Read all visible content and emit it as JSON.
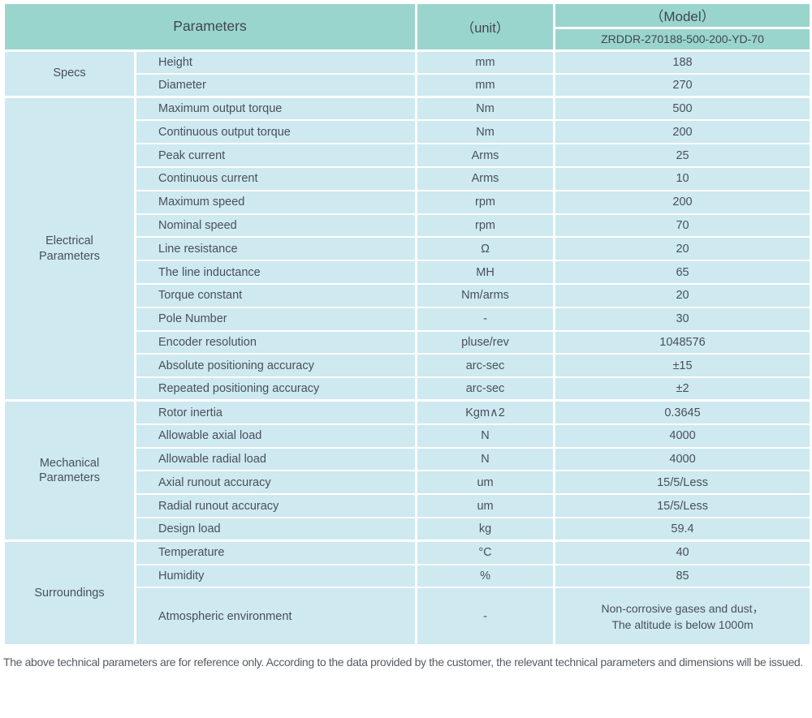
{
  "header": {
    "parameters_label": "Parameters",
    "unit_label": "（unit）",
    "model_label": "（Model）",
    "model_value": "ZRDDR-270188-500-200-YD-70"
  },
  "colors": {
    "header_bg": "#9ad5cd",
    "cell_bg": "#cee9f0",
    "grid_lines": "#ffffff",
    "text": "#49505a"
  },
  "sections": [
    {
      "group": "Specs",
      "rows": [
        {
          "name": "Height",
          "unit": "mm",
          "value": "188"
        },
        {
          "name": "Diameter",
          "unit": "mm",
          "value": "270"
        }
      ]
    },
    {
      "group": "Electrical\nParameters",
      "rows": [
        {
          "name": "Maximum output torque",
          "unit": "Nm",
          "value": "500"
        },
        {
          "name": "Continuous output torque",
          "unit": "Nm",
          "value": "200"
        },
        {
          "name": "Peak current",
          "unit": "Arms",
          "value": "25"
        },
        {
          "name": "Continuous current",
          "unit": "Arms",
          "value": "10"
        },
        {
          "name": "Maximum speed",
          "unit": "rpm",
          "value": "200"
        },
        {
          "name": "Nominal speed",
          "unit": "rpm",
          "value": "70"
        },
        {
          "name": "Line resistance",
          "unit": "Ω",
          "value": "20"
        },
        {
          "name": "The line inductance",
          "unit": "MH",
          "value": "65"
        },
        {
          "name": "Torque constant",
          "unit": "Nm/arms",
          "value": "20"
        },
        {
          "name": "Pole Number",
          "unit": "-",
          "value": "30"
        },
        {
          "name": "Encoder resolution",
          "unit": "pluse/rev",
          "value": "1048576"
        },
        {
          "name": "Absolute positioning accuracy",
          "unit": "arc-sec",
          "value": "±15"
        },
        {
          "name": "Repeated positioning accuracy",
          "unit": "arc-sec",
          "value": "±2"
        }
      ]
    },
    {
      "group": "Mechanical\nParameters",
      "rows": [
        {
          "name": "Rotor inertia",
          "unit": "Kgm∧2",
          "value": "0.3645"
        },
        {
          "name": "Allowable axial load",
          "unit": "N",
          "value": "4000"
        },
        {
          "name": "Allowable radial load",
          "unit": "N",
          "value": "4000"
        },
        {
          "name": "Axial runout accuracy",
          "unit": "um",
          "value": "15/5/Less"
        },
        {
          "name": "Radial runout accuracy",
          "unit": "um",
          "value": "15/5/Less"
        },
        {
          "name": "Design load",
          "unit": "kg",
          "value": "59.4"
        }
      ]
    },
    {
      "group": "Surroundings",
      "rows": [
        {
          "name": "Temperature",
          "unit": "°C",
          "value": "40"
        },
        {
          "name": "Humidity",
          "unit": "%",
          "value": "85"
        },
        {
          "name": "Atmospheric environment",
          "unit": "-",
          "value": "Non-corrosive gases and dust，\nThe altitude is below 1000m"
        }
      ]
    }
  ],
  "footer": {
    "note": "The above technical parameters are for reference only. According to the data provided by the customer, the relevant technical parameters and dimensions will be issued."
  }
}
